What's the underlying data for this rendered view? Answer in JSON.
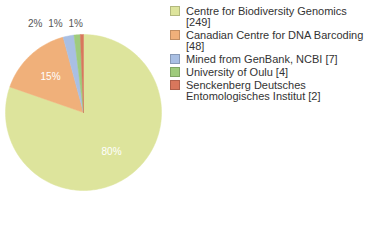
{
  "chart_data": {
    "type": "pie",
    "categories": [
      "Centre for Biodiversity Genomics [249]",
      "Canadian Centre for DNA Barcoding [48]",
      "Mined from GenBank, NCBI [7]",
      "University of Oulu [4]",
      "Senckenberg Deutsches Entomologisches Institut [2]"
    ],
    "values": [
      80.32,
      15.48,
      2.26,
      1.29,
      0.65
    ],
    "value_labels": [
      "80%",
      "15%",
      "2%",
      "1%",
      "1%"
    ],
    "colors": [
      "#dde49c",
      "#f0b07a",
      "#a9bfe3",
      "#9fcb7c",
      "#d8775c"
    ],
    "data_labels": true,
    "legend": "right"
  }
}
